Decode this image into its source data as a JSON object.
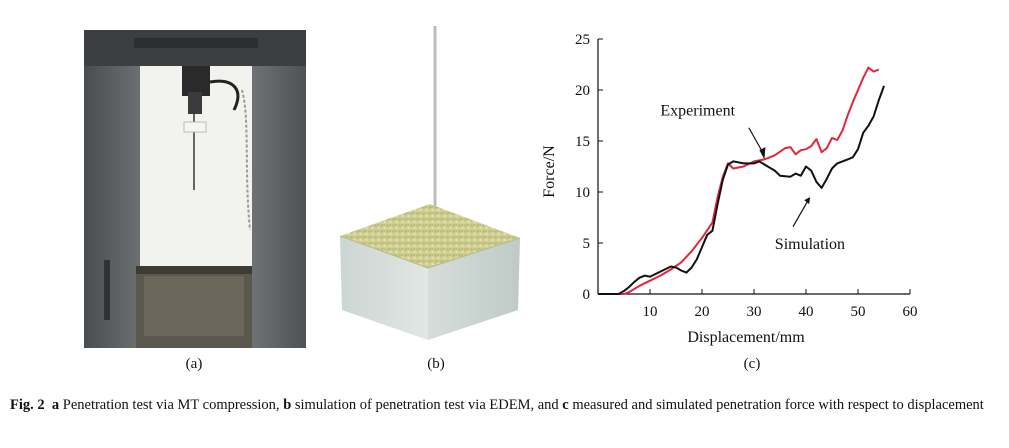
{
  "panels": {
    "a_label": "(a)",
    "b_label": "(b)",
    "c_label": "(c)"
  },
  "chart_data": {
    "type": "line",
    "xlabel": "Displacement/mm",
    "ylabel": "Force/N",
    "xlim": [
      0,
      60
    ],
    "ylim": [
      0,
      25
    ],
    "x_ticks": [
      10,
      20,
      30,
      40,
      50,
      60
    ],
    "x_tick_labels": [
      "10",
      "20",
      "30",
      "40",
      "50",
      "60"
    ],
    "y_ticks": [
      0,
      5,
      10,
      15,
      20,
      25
    ],
    "y_tick_labels": [
      "0",
      "5",
      "10",
      "15",
      "20",
      "25"
    ],
    "grid": false,
    "series": [
      {
        "name": "Experiment",
        "color": "#e0283c",
        "points": [
          [
            0,
            0
          ],
          [
            5,
            0
          ],
          [
            6,
            0.2
          ],
          [
            8,
            0.8
          ],
          [
            10,
            1.3
          ],
          [
            12,
            1.8
          ],
          [
            14,
            2.4
          ],
          [
            16,
            3.1
          ],
          [
            18,
            4.2
          ],
          [
            20,
            5.5
          ],
          [
            22,
            7.0
          ],
          [
            23,
            9.5
          ],
          [
            24,
            11.5
          ],
          [
            25,
            12.8
          ],
          [
            26,
            12.3
          ],
          [
            28,
            12.5
          ],
          [
            30,
            13.0
          ],
          [
            32,
            13.2
          ],
          [
            34,
            13.6
          ],
          [
            36,
            14.3
          ],
          [
            37,
            14.4
          ],
          [
            38,
            13.7
          ],
          [
            39,
            14.1
          ],
          [
            40,
            14.2
          ],
          [
            41,
            14.5
          ],
          [
            42,
            15.2
          ],
          [
            43,
            13.9
          ],
          [
            44,
            14.3
          ],
          [
            45,
            15.3
          ],
          [
            46,
            15.1
          ],
          [
            47,
            16.0
          ],
          [
            48,
            17.5
          ],
          [
            49,
            18.8
          ],
          [
            50,
            20.0
          ],
          [
            51,
            21.2
          ],
          [
            52,
            22.2
          ],
          [
            53,
            21.8
          ],
          [
            54,
            22.0
          ]
        ]
      },
      {
        "name": "Simulation",
        "color": "#111111",
        "points": [
          [
            0,
            0
          ],
          [
            4,
            0
          ],
          [
            5,
            0.3
          ],
          [
            6,
            0.7
          ],
          [
            7,
            1.2
          ],
          [
            8,
            1.6
          ],
          [
            9,
            1.8
          ],
          [
            10,
            1.7
          ],
          [
            12,
            2.2
          ],
          [
            14,
            2.7
          ],
          [
            15,
            2.6
          ],
          [
            16,
            2.3
          ],
          [
            17,
            2.1
          ],
          [
            18,
            2.6
          ],
          [
            19,
            3.4
          ],
          [
            20,
            4.6
          ],
          [
            21,
            5.8
          ],
          [
            22,
            6.2
          ],
          [
            23,
            8.8
          ],
          [
            24,
            11.2
          ],
          [
            25,
            12.7
          ],
          [
            26,
            13.0
          ],
          [
            28,
            12.8
          ],
          [
            30,
            12.8
          ],
          [
            31,
            13.0
          ],
          [
            32,
            12.7
          ],
          [
            34,
            12.1
          ],
          [
            35,
            11.6
          ],
          [
            37,
            11.5
          ],
          [
            38,
            11.8
          ],
          [
            39,
            11.6
          ],
          [
            40,
            12.5
          ],
          [
            41,
            12.1
          ],
          [
            42,
            11.0
          ],
          [
            43,
            10.4
          ],
          [
            44,
            11.3
          ],
          [
            45,
            12.3
          ],
          [
            46,
            12.8
          ],
          [
            48,
            13.2
          ],
          [
            49,
            13.4
          ],
          [
            50,
            14.2
          ],
          [
            51,
            15.8
          ],
          [
            52,
            16.5
          ],
          [
            53,
            17.4
          ],
          [
            54,
            19.0
          ],
          [
            55,
            20.4
          ]
        ]
      }
    ],
    "annotations": [
      {
        "text": "Experiment",
        "target_series": "Experiment"
      },
      {
        "text": "Simulation",
        "target_series": "Simulation"
      }
    ]
  },
  "caption": {
    "fig_label": "Fig. 2",
    "a_key": "a",
    "a_text": " Penetration test via MT compression, ",
    "b_key": "b",
    "b_text": " simulation of penetration test via EDEM, and ",
    "c_key": "c",
    "c_text": " measured and simulated penetration force with respect to displacement"
  }
}
